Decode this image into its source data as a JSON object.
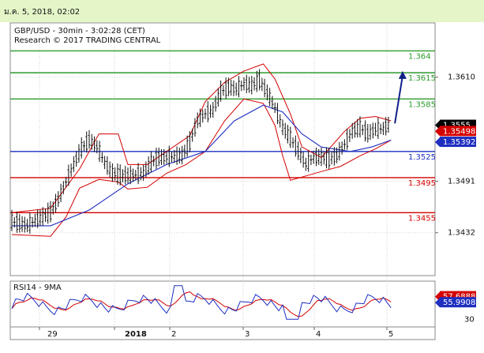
{
  "header": {
    "datetime": "ม.ค. 5, 2018, 02:02"
  },
  "chart_data": {
    "type": "candlestick",
    "title": "GBP/USD - 30min - 3:02:28 (CET)",
    "subtitle": "Research © 2017 TRADING CENTRAL",
    "x_tick_labels": [
      "29",
      "2018",
      "2",
      "3",
      "4",
      "5"
    ],
    "y_tick_labels": [
      "1.3610",
      "1.3491",
      "1.3432"
    ],
    "y_tick_values": [
      1.361,
      1.3491,
      1.3432
    ],
    "ylim": [
      1.3383,
      1.3672
    ],
    "grid": true,
    "levels": [
      {
        "label": "1.364",
        "value": 1.364,
        "color": "#2e9a2e"
      },
      {
        "label": "1.3615",
        "value": 1.3615,
        "color": "#2e9a2e"
      },
      {
        "label": "1.3585",
        "value": 1.3585,
        "color": "#2e9a2e"
      },
      {
        "label": "1.3525",
        "value": 1.3525,
        "color": "#1f2fc0"
      },
      {
        "label": "1.3495",
        "value": 1.3495,
        "color": "#d40000"
      },
      {
        "label": "1.3455",
        "value": 1.3455,
        "color": "#d40000"
      }
    ],
    "price_tags": [
      {
        "label": "1.3555",
        "value": 1.3555,
        "bg": "#000000",
        "fg": "#ffffff"
      },
      {
        "label": "1.35498",
        "value": 1.35498,
        "bg": "#d40000",
        "fg": "#ffffff"
      },
      {
        "label": "1.35392",
        "value": 1.35392,
        "bg": "#1f2fc0",
        "fg": "#ffffff"
      }
    ],
    "price_series": [
      [
        0,
        1.3445
      ],
      [
        4,
        1.3442
      ],
      [
        8,
        1.344
      ],
      [
        12,
        1.3446
      ],
      [
        16,
        1.345
      ],
      [
        20,
        1.3455
      ],
      [
        24,
        1.347
      ],
      [
        28,
        1.349
      ],
      [
        32,
        1.351
      ],
      [
        36,
        1.3528
      ],
      [
        40,
        1.3538
      ],
      [
        44,
        1.353
      ],
      [
        48,
        1.3512
      ],
      [
        52,
        1.35
      ],
      [
        56,
        1.3497
      ],
      [
        60,
        1.3497
      ],
      [
        64,
        1.3498
      ],
      [
        68,
        1.35
      ],
      [
        72,
        1.3512
      ],
      [
        76,
        1.3518
      ],
      [
        80,
        1.3518
      ],
      [
        84,
        1.3519
      ],
      [
        88,
        1.352
      ],
      [
        92,
        1.3535
      ],
      [
        96,
        1.356
      ],
      [
        100,
        1.3568
      ],
      [
        104,
        1.3572
      ],
      [
        108,
        1.3593
      ],
      [
        112,
        1.3598
      ],
      [
        116,
        1.3596
      ],
      [
        120,
        1.3602
      ],
      [
        124,
        1.36
      ],
      [
        128,
        1.3606
      ],
      [
        132,
        1.3592
      ],
      [
        136,
        1.3575
      ],
      [
        140,
        1.3552
      ],
      [
        144,
        1.354
      ],
      [
        148,
        1.3525
      ],
      [
        152,
        1.351
      ],
      [
        156,
        1.3518
      ],
      [
        160,
        1.3518
      ],
      [
        164,
        1.3516
      ],
      [
        168,
        1.352
      ],
      [
        172,
        1.3533
      ],
      [
        176,
        1.3548
      ],
      [
        180,
        1.3552
      ],
      [
        184,
        1.3545
      ],
      [
        188,
        1.355
      ],
      [
        192,
        1.3551
      ],
      [
        196,
        1.3557
      ]
    ],
    "ma_series": [
      [
        0,
        1.344
      ],
      [
        20,
        1.344
      ],
      [
        40,
        1.3458
      ],
      [
        60,
        1.3488
      ],
      [
        80,
        1.351
      ],
      [
        100,
        1.3525
      ],
      [
        115,
        1.356
      ],
      [
        130,
        1.3578
      ],
      [
        140,
        1.357
      ],
      [
        150,
        1.3545
      ],
      [
        160,
        1.353
      ],
      [
        175,
        1.3525
      ],
      [
        186,
        1.353
      ],
      [
        196,
        1.3538
      ]
    ],
    "bollinger_upper": [
      [
        0,
        1.3455
      ],
      [
        20,
        1.346
      ],
      [
        35,
        1.3505
      ],
      [
        45,
        1.3545
      ],
      [
        55,
        1.3545
      ],
      [
        60,
        1.351
      ],
      [
        70,
        1.351
      ],
      [
        80,
        1.3525
      ],
      [
        92,
        1.3543
      ],
      [
        100,
        1.3582
      ],
      [
        110,
        1.3604
      ],
      [
        120,
        1.3617
      ],
      [
        130,
        1.3625
      ],
      [
        136,
        1.3608
      ],
      [
        144,
        1.3568
      ],
      [
        150,
        1.353
      ],
      [
        160,
        1.3518
      ],
      [
        172,
        1.3548
      ],
      [
        180,
        1.3563
      ],
      [
        188,
        1.3565
      ],
      [
        196,
        1.356
      ]
    ],
    "bollinger_lower": [
      [
        0,
        1.343
      ],
      [
        20,
        1.3428
      ],
      [
        28,
        1.345
      ],
      [
        35,
        1.3483
      ],
      [
        45,
        1.3493
      ],
      [
        55,
        1.349
      ],
      [
        60,
        1.3482
      ],
      [
        70,
        1.3484
      ],
      [
        80,
        1.35
      ],
      [
        90,
        1.351
      ],
      [
        100,
        1.3525
      ],
      [
        110,
        1.356
      ],
      [
        120,
        1.3585
      ],
      [
        130,
        1.358
      ],
      [
        136,
        1.3555
      ],
      [
        140,
        1.352
      ],
      [
        144,
        1.3492
      ],
      [
        152,
        1.3497
      ],
      [
        160,
        1.3502
      ],
      [
        170,
        1.3508
      ],
      [
        180,
        1.352
      ],
      [
        188,
        1.3528
      ],
      [
        196,
        1.3538
      ]
    ],
    "forecast_arrow": {
      "from": [
        198,
        1.3557
      ],
      "to": [
        202,
        1.3617
      ]
    },
    "rsi": {
      "label": "RSI14 - 9MA",
      "ylim": [
        20,
        80
      ],
      "ticks": [
        "30"
      ],
      "tags": [
        {
          "label": "57.6888",
          "value": 57.69,
          "bg": "#d40000",
          "fg": "#ffffff"
        },
        {
          "label": "55.9908",
          "value": 55.99,
          "bg": "#1f2fc0",
          "fg": "#ffffff"
        }
      ]
    }
  }
}
